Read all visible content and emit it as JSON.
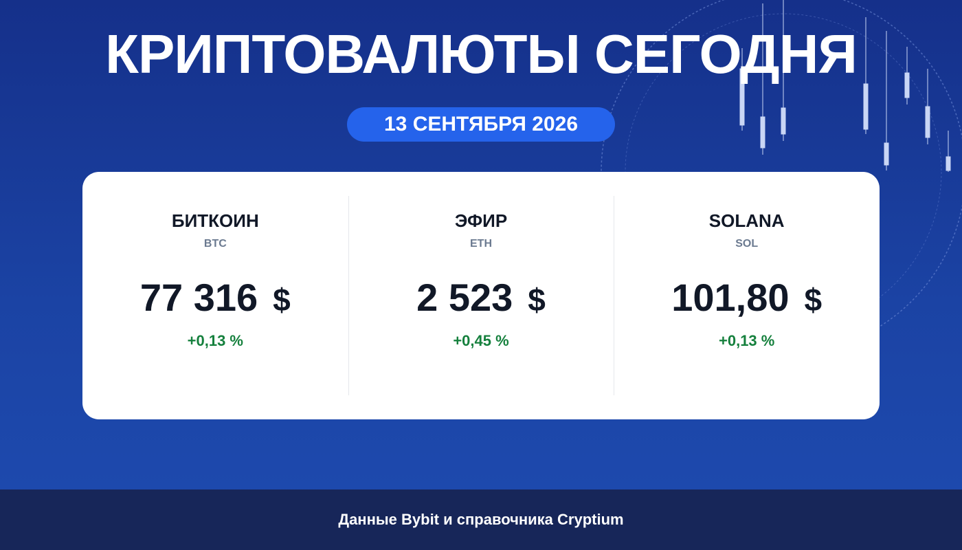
{
  "header": {
    "title": "КРИПТОВАЛЮТЫ СЕГОДНЯ",
    "date": "13 СЕНТЯБРЯ 2026"
  },
  "cards": [
    {
      "name": "БИТКОИН",
      "ticker": "BTC",
      "price": "77 316",
      "currency": "$",
      "change": "+0,13 %"
    },
    {
      "name": "ЭФИР",
      "ticker": "ETH",
      "price": "2 523",
      "currency": "$",
      "change": "+0,45 %"
    },
    {
      "name": "SOLANA",
      "ticker": "SOL",
      "price": "101,80",
      "currency": "$",
      "change": "+0,13 %"
    }
  ],
  "footer": {
    "source": "Данные Bybit и справочника Cryptium"
  }
}
